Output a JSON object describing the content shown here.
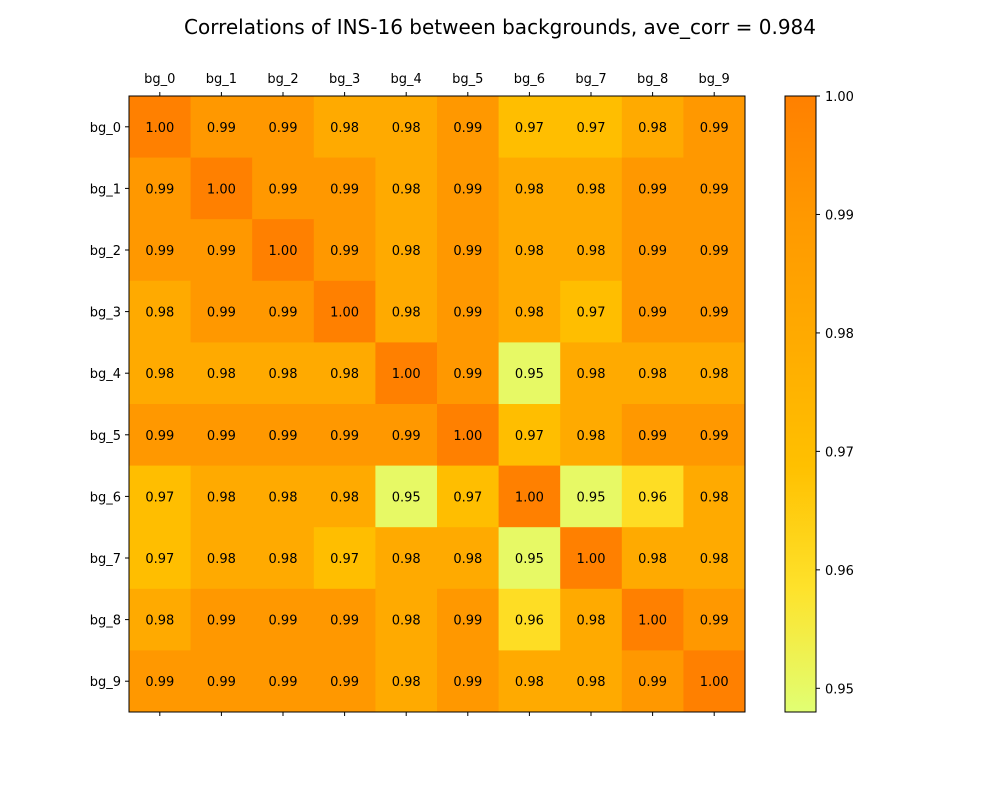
{
  "chart_data": {
    "type": "heatmap",
    "title": "Correlations of INS-16 between backgrounds, ave_corr = 0.984",
    "x_categories": [
      "bg_0",
      "bg_1",
      "bg_2",
      "bg_3",
      "bg_4",
      "bg_5",
      "bg_6",
      "bg_7",
      "bg_8",
      "bg_9"
    ],
    "y_categories": [
      "bg_0",
      "bg_1",
      "bg_2",
      "bg_3",
      "bg_4",
      "bg_5",
      "bg_6",
      "bg_7",
      "bg_8",
      "bg_9"
    ],
    "values": [
      [
        1.0,
        0.99,
        0.99,
        0.98,
        0.98,
        0.99,
        0.97,
        0.97,
        0.98,
        0.99
      ],
      [
        0.99,
        1.0,
        0.99,
        0.99,
        0.98,
        0.99,
        0.98,
        0.98,
        0.99,
        0.99
      ],
      [
        0.99,
        0.99,
        1.0,
        0.99,
        0.98,
        0.99,
        0.98,
        0.98,
        0.99,
        0.99
      ],
      [
        0.98,
        0.99,
        0.99,
        1.0,
        0.98,
        0.99,
        0.98,
        0.97,
        0.99,
        0.99
      ],
      [
        0.98,
        0.98,
        0.98,
        0.98,
        1.0,
        0.99,
        0.95,
        0.98,
        0.98,
        0.98
      ],
      [
        0.99,
        0.99,
        0.99,
        0.99,
        0.99,
        1.0,
        0.97,
        0.98,
        0.99,
        0.99
      ],
      [
        0.97,
        0.98,
        0.98,
        0.98,
        0.95,
        0.97,
        1.0,
        0.95,
        0.96,
        0.98
      ],
      [
        0.97,
        0.98,
        0.98,
        0.97,
        0.98,
        0.98,
        0.95,
        1.0,
        0.98,
        0.98
      ],
      [
        0.98,
        0.99,
        0.99,
        0.99,
        0.98,
        0.99,
        0.96,
        0.98,
        1.0,
        0.99
      ],
      [
        0.99,
        0.99,
        0.99,
        0.99,
        0.98,
        0.99,
        0.98,
        0.98,
        0.99,
        1.0
      ]
    ],
    "value_format_decimals": 2,
    "x_axis_position": "top",
    "colorbar": {
      "min": 0.948,
      "max": 1.0,
      "ticks": [
        0.95,
        0.96,
        0.97,
        0.98,
        0.99,
        1.0
      ],
      "tick_labels": [
        "0.95",
        "0.96",
        "0.97",
        "0.98",
        "0.99",
        "1.00"
      ],
      "position": "right"
    },
    "colormap": [
      "#e1ff73",
      "#fee22b",
      "#ffc000",
      "#ffab00",
      "#ff9900",
      "#ff8000"
    ],
    "grid": false
  }
}
